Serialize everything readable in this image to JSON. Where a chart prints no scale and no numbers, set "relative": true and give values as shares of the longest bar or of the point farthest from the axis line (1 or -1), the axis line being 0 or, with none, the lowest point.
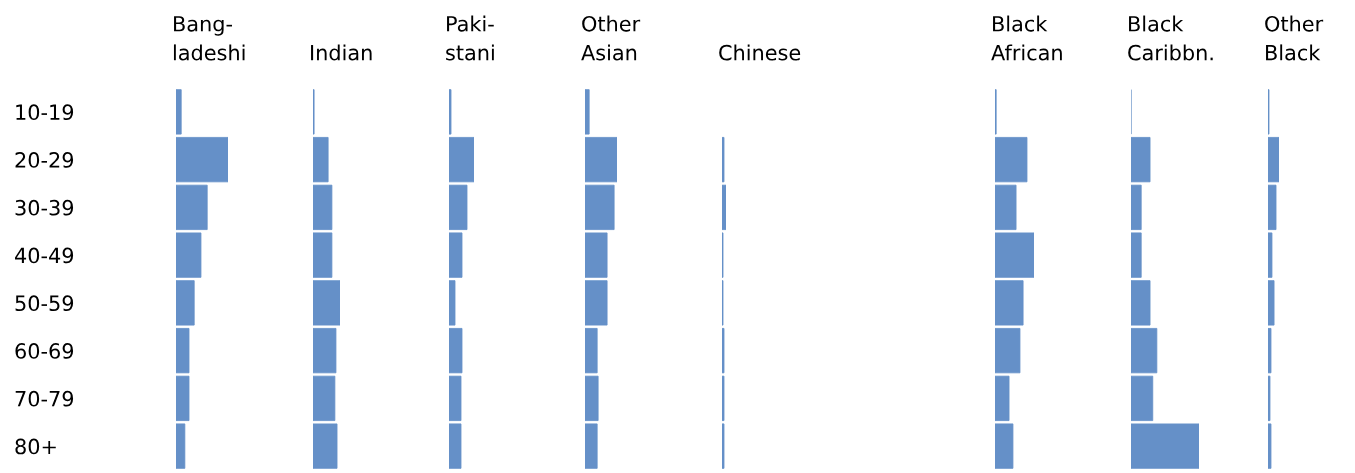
{
  "chart_data": [
    {
      "type": "bar",
      "orientation": "horizontal",
      "relative": true,
      "title": "Bang-\nladeshi",
      "color": "#6590c8",
      "categories": [
        "10-19",
        "20-29",
        "30-39",
        "40-49",
        "50-59",
        "60-69",
        "70-79",
        "80+"
      ],
      "values": [
        0.1,
        1,
        0.6,
        0.48,
        0.35,
        0.25,
        0.25,
        0.17
      ]
    },
    {
      "type": "bar",
      "orientation": "horizontal",
      "relative": true,
      "title": "Indian",
      "color": "#6590c8",
      "categories": [
        null,
        null,
        null,
        null,
        null,
        null,
        null,
        null
      ],
      "values": [
        0.04,
        0.56,
        0.7,
        0.7,
        1,
        0.85,
        0.81,
        0.89
      ]
    },
    {
      "type": "bar",
      "orientation": "horizontal",
      "relative": true,
      "title": "Paki-\nstani",
      "color": "#6590c8",
      "categories": [
        null,
        null,
        null,
        null,
        null,
        null,
        null,
        null
      ],
      "values": [
        0.08,
        1,
        0.72,
        0.52,
        0.24,
        0.52,
        0.48,
        0.48
      ]
    },
    {
      "type": "bar",
      "orientation": "horizontal",
      "relative": true,
      "title": "Other\nAsian",
      "color": "#6590c8",
      "categories": [
        null,
        null,
        null,
        null,
        null,
        null,
        null,
        null
      ],
      "values": [
        0.13,
        1,
        0.91,
        0.69,
        0.69,
        0.38,
        0.41,
        0.38
      ]
    },
    {
      "type": "bar",
      "orientation": "horizontal",
      "relative": true,
      "title": "Chinese",
      "color": "#6590c8",
      "categories": [
        null,
        null,
        null,
        null,
        null,
        null,
        null,
        null
      ],
      "values": [
        null,
        0.5,
        1,
        0.25,
        0.25,
        0.5,
        0.5,
        0.5
      ]
    },
    {
      "type": "bar",
      "orientation": "horizontal",
      "relative": true,
      "title": "Black\nAfrican",
      "color": "#6590c8",
      "categories": [
        null,
        null,
        null,
        null,
        null,
        null,
        null,
        null
      ],
      "values": [
        0.03,
        0.82,
        0.54,
        1,
        0.72,
        0.64,
        0.36,
        0.46
      ]
    },
    {
      "type": "bar",
      "orientation": "horizontal",
      "relative": true,
      "title": "Black\nCaribbn.",
      "color": "#6590c8",
      "categories": [
        null,
        null,
        null,
        null,
        null,
        null,
        null,
        null
      ],
      "values": [
        0,
        0.28,
        0.15,
        0.15,
        0.28,
        0.38,
        0.32,
        1
      ]
    },
    {
      "type": "bar",
      "orientation": "horizontal",
      "relative": true,
      "title": "Other\nBlack",
      "color": "#6590c8",
      "categories": [
        null,
        null,
        null,
        null,
        null,
        null,
        null,
        null
      ],
      "values": [
        0.09,
        1,
        0.73,
        0.36,
        0.55,
        0.27,
        0.18,
        0.27
      ]
    }
  ]
}
